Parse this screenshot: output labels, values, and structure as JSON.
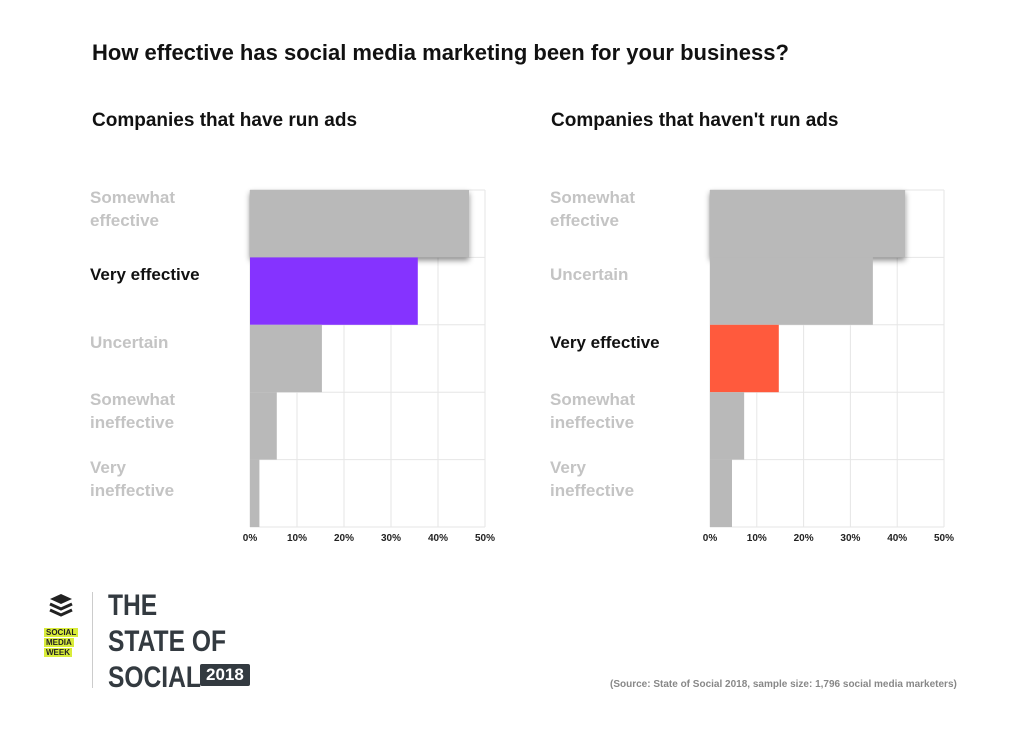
{
  "title": "How effective has social media marketing been for your business?",
  "chart_data": [
    {
      "type": "bar",
      "orientation": "horizontal",
      "subtitle": "Companies that have run ads",
      "categories": [
        "Somewhat effective",
        "Very effective",
        "Uncertain",
        "Somewhat ineffective",
        "Very ineffective"
      ],
      "values": [
        46.6,
        35.7,
        15.3,
        5.7,
        2.0
      ],
      "highlight": "Very effective",
      "highlight_color": "#8533ff",
      "xlim": [
        0,
        50
      ],
      "xticks": [
        "0%",
        "10%",
        "20%",
        "30%",
        "40%",
        "50%"
      ],
      "grid": true
    },
    {
      "type": "bar",
      "orientation": "horizontal",
      "subtitle": "Companies that haven't run ads",
      "categories": [
        "Somewhat effective",
        "Uncertain",
        "Very effective",
        "Somewhat ineffective",
        "Very ineffective"
      ],
      "values": [
        41.7,
        34.8,
        14.7,
        7.3,
        4.7
      ],
      "highlight": "Very effective",
      "highlight_color": "#ff5a3d",
      "xlim": [
        0,
        50
      ],
      "xticks": [
        "0%",
        "10%",
        "20%",
        "30%",
        "40%",
        "50%"
      ],
      "grid": true
    }
  ],
  "bar_color": "#b9b9b9",
  "source": "(Source: State of Social 2018, sample size: 1,796 social media marketers)",
  "brand": {
    "smw": [
      "SOCIAL",
      "MEDIA",
      "WEEK"
    ],
    "lines": [
      "THE",
      "STATE OF",
      "SOCIAL"
    ],
    "year": "2018"
  }
}
